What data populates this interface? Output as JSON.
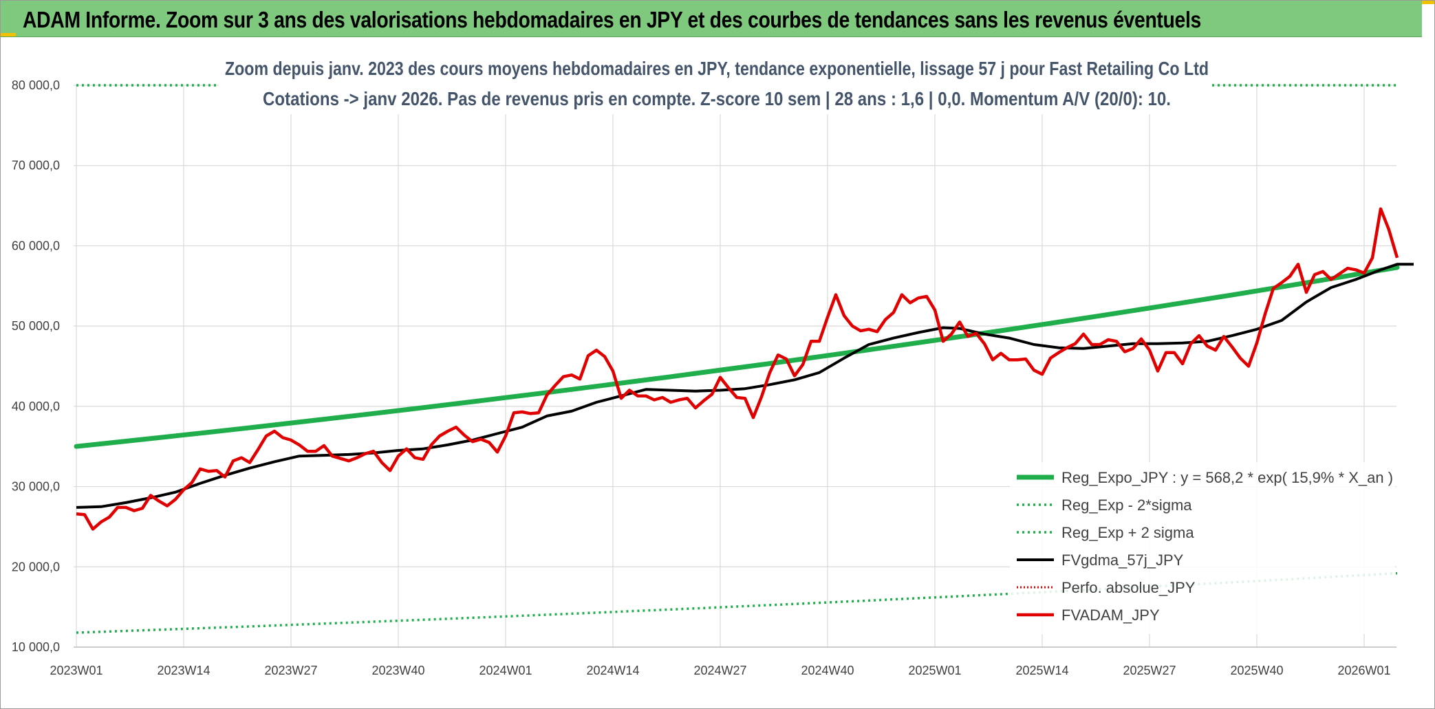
{
  "header": {
    "title": "ADAM Informe. Zoom sur 3 ans des valorisations hebdomadaires en JPY et des courbes de tendances sans les revenus éventuels"
  },
  "colors": {
    "header_bg": "#7fc97f",
    "reg_expo": "#1fae4b",
    "sigma": "#1fae4b",
    "fvgdma": "#000000",
    "perfo": "#e00000",
    "fvadam": "#e00000",
    "subtitle": "#44546a"
  },
  "chart_data": {
    "type": "line",
    "subtitle_lines": [
      "Zoom depuis janv. 2023 des cours moyens hebdomadaires en JPY, tendance exponentielle, lissage 57 j pour Fast Retailing Co Ltd",
      "Cotations -> janv 2026. Pas de revenus pris en compte. Z-score 10 sem | 28 ans : 1,6 | 0,0. Momentum A/V (20/0): 10."
    ],
    "x_tick_labels": [
      "2023W01",
      "2023W14",
      "2023W27",
      "2023W40",
      "2024W01",
      "2024W14",
      "2024W27",
      "2024W40",
      "2025W01",
      "2025W14",
      "2025W27",
      "2025W40",
      "2026W01"
    ],
    "y_tick_labels": [
      "10 000,0",
      "20 000,0",
      "30 000,0",
      "40 000,0",
      "50 000,0",
      "60 000,0",
      "70 000,0",
      "80 000,0"
    ],
    "ylim": [
      10000,
      80000
    ],
    "grid": true,
    "legend_position": "bottom-right",
    "legend": [
      "Reg_Expo_JPY : y = 568,2 * exp( 15,9% *  X_an )",
      "Reg_Exp - 2*sigma",
      "Reg_Exp + 2 sigma",
      "FVgdma_57j_JPY",
      "Perfo. absolue_JPY",
      "FVADAM_JPY"
    ],
    "series": [
      {
        "name": "Reg_Expo_JPY : y = 568,2 * exp( 15,9% *  X_an )",
        "style": "solid-thick",
        "x_week_index": [
          0,
          160
        ],
        "growth_per_year": 0.159,
        "start_value": 35000,
        "end_value": 57300
      },
      {
        "name": "Reg_Exp - 2*sigma",
        "style": "dotted",
        "x_week_index": [
          0,
          160
        ],
        "start_value": 11800,
        "end_value": 19200
      },
      {
        "name": "Reg_Exp + 2 sigma",
        "style": "dotted",
        "x_week_index": [
          0,
          160
        ],
        "start_value": 80000,
        "end_value": 80000,
        "note_clipped": true
      },
      {
        "name": "FVgdma_57j_JPY",
        "style": "solid",
        "points": [
          [
            0,
            27400
          ],
          [
            3,
            27500
          ],
          [
            6,
            28000
          ],
          [
            9,
            28600
          ],
          [
            12,
            29300
          ],
          [
            15,
            30400
          ],
          [
            18,
            31400
          ],
          [
            21,
            32300
          ],
          [
            24,
            33100
          ],
          [
            27,
            33800
          ],
          [
            30,
            33900
          ],
          [
            33,
            34000
          ],
          [
            36,
            34200
          ],
          [
            39,
            34500
          ],
          [
            42,
            34700
          ],
          [
            45,
            35200
          ],
          [
            48,
            35800
          ],
          [
            51,
            36600
          ],
          [
            54,
            37400
          ],
          [
            57,
            38800
          ],
          [
            60,
            39400
          ],
          [
            63,
            40500
          ],
          [
            66,
            41300
          ],
          [
            69,
            42100
          ],
          [
            72,
            42000
          ],
          [
            75,
            41900
          ],
          [
            78,
            42000
          ],
          [
            81,
            42200
          ],
          [
            84,
            42700
          ],
          [
            87,
            43300
          ],
          [
            90,
            44200
          ],
          [
            93,
            46000
          ],
          [
            96,
            47700
          ],
          [
            99,
            48500
          ],
          [
            102,
            49200
          ],
          [
            105,
            49800
          ],
          [
            107,
            49700
          ],
          [
            110,
            49000
          ],
          [
            113,
            48500
          ],
          [
            116,
            47700
          ],
          [
            119,
            47300
          ],
          [
            122,
            47200
          ],
          [
            125,
            47500
          ],
          [
            128,
            47800
          ],
          [
            131,
            47800
          ],
          [
            134,
            47900
          ],
          [
            137,
            48100
          ],
          [
            140,
            48800
          ],
          [
            143,
            49600
          ],
          [
            146,
            50700
          ],
          [
            149,
            53000
          ],
          [
            152,
            54800
          ],
          [
            155,
            55800
          ],
          [
            158,
            57000
          ],
          [
            160,
            57700
          ],
          [
            162,
            57700
          ]
        ]
      },
      {
        "name": "Perfo. absolue_JPY",
        "style": "dotted",
        "points": []
      },
      {
        "name": "FVADAM_JPY",
        "style": "solid-thick",
        "points": [
          [
            0,
            26600
          ],
          [
            1,
            26500
          ],
          [
            2,
            24700
          ],
          [
            3,
            25600
          ],
          [
            4,
            26200
          ],
          [
            5,
            27400
          ],
          [
            6,
            27400
          ],
          [
            7,
            27000
          ],
          [
            8,
            27300
          ],
          [
            9,
            28900
          ],
          [
            10,
            28200
          ],
          [
            11,
            27600
          ],
          [
            12,
            28400
          ],
          [
            13,
            29600
          ],
          [
            14,
            30500
          ],
          [
            15,
            32200
          ],
          [
            16,
            31900
          ],
          [
            17,
            32000
          ],
          [
            18,
            31200
          ],
          [
            19,
            33200
          ],
          [
            20,
            33600
          ],
          [
            21,
            33000
          ],
          [
            22,
            34600
          ],
          [
            23,
            36300
          ],
          [
            24,
            36900
          ],
          [
            25,
            36100
          ],
          [
            26,
            35800
          ],
          [
            27,
            35200
          ],
          [
            28,
            34400
          ],
          [
            29,
            34400
          ],
          [
            30,
            35100
          ],
          [
            31,
            33800
          ],
          [
            32,
            33500
          ],
          [
            33,
            33200
          ],
          [
            34,
            33600
          ],
          [
            35,
            34100
          ],
          [
            36,
            34400
          ],
          [
            37,
            33000
          ],
          [
            38,
            32000
          ],
          [
            39,
            33800
          ],
          [
            40,
            34700
          ],
          [
            41,
            33600
          ],
          [
            42,
            33400
          ],
          [
            43,
            35200
          ],
          [
            44,
            36300
          ],
          [
            45,
            36900
          ],
          [
            46,
            37400
          ],
          [
            47,
            36400
          ],
          [
            48,
            35600
          ],
          [
            49,
            35900
          ],
          [
            50,
            35500
          ],
          [
            51,
            34300
          ],
          [
            52,
            36300
          ],
          [
            53,
            39200
          ],
          [
            54,
            39300
          ],
          [
            55,
            39100
          ],
          [
            56,
            39200
          ],
          [
            57,
            41400
          ],
          [
            58,
            42600
          ],
          [
            59,
            43700
          ],
          [
            60,
            43900
          ],
          [
            61,
            43400
          ],
          [
            62,
            46300
          ],
          [
            63,
            47000
          ],
          [
            64,
            46200
          ],
          [
            65,
            44400
          ],
          [
            66,
            41000
          ],
          [
            67,
            42000
          ],
          [
            68,
            41300
          ],
          [
            69,
            41300
          ],
          [
            70,
            40800
          ],
          [
            71,
            41100
          ],
          [
            72,
            40500
          ],
          [
            73,
            40800
          ],
          [
            74,
            41000
          ],
          [
            75,
            39800
          ],
          [
            76,
            40700
          ],
          [
            77,
            41500
          ],
          [
            78,
            43600
          ],
          [
            79,
            42300
          ],
          [
            80,
            41100
          ],
          [
            81,
            41000
          ],
          [
            82,
            38600
          ],
          [
            83,
            41200
          ],
          [
            84,
            44200
          ],
          [
            85,
            46400
          ],
          [
            86,
            45900
          ],
          [
            87,
            43800
          ],
          [
            88,
            45200
          ],
          [
            89,
            48100
          ],
          [
            90,
            48100
          ],
          [
            91,
            51100
          ],
          [
            92,
            53900
          ],
          [
            93,
            51300
          ],
          [
            94,
            50000
          ],
          [
            95,
            49400
          ],
          [
            96,
            49600
          ],
          [
            97,
            49300
          ],
          [
            98,
            50800
          ],
          [
            99,
            51700
          ],
          [
            100,
            53900
          ],
          [
            101,
            52900
          ],
          [
            102,
            53500
          ],
          [
            103,
            53700
          ],
          [
            104,
            52000
          ],
          [
            105,
            48100
          ],
          [
            106,
            49000
          ],
          [
            107,
            50500
          ],
          [
            108,
            48700
          ],
          [
            109,
            49100
          ],
          [
            110,
            47800
          ],
          [
            111,
            45800
          ],
          [
            112,
            46600
          ],
          [
            113,
            45800
          ],
          [
            114,
            45800
          ],
          [
            115,
            45900
          ],
          [
            116,
            44500
          ],
          [
            117,
            44000
          ],
          [
            118,
            46000
          ],
          [
            119,
            46700
          ],
          [
            120,
            47300
          ],
          [
            121,
            47800
          ],
          [
            122,
            49000
          ],
          [
            123,
            47700
          ],
          [
            124,
            47700
          ],
          [
            125,
            48300
          ],
          [
            126,
            48100
          ],
          [
            127,
            46800
          ],
          [
            128,
            47200
          ],
          [
            129,
            48400
          ],
          [
            130,
            47000
          ],
          [
            131,
            44400
          ],
          [
            132,
            46700
          ],
          [
            133,
            46700
          ],
          [
            134,
            45300
          ],
          [
            135,
            47800
          ],
          [
            136,
            48800
          ],
          [
            137,
            47500
          ],
          [
            138,
            47000
          ],
          [
            139,
            48700
          ],
          [
            140,
            47400
          ],
          [
            141,
            46000
          ],
          [
            142,
            45000
          ],
          [
            143,
            47900
          ],
          [
            144,
            51500
          ],
          [
            145,
            54700
          ],
          [
            146,
            55400
          ],
          [
            147,
            56200
          ],
          [
            148,
            57700
          ],
          [
            149,
            54200
          ],
          [
            150,
            56400
          ],
          [
            151,
            56800
          ],
          [
            152,
            55800
          ],
          [
            153,
            56500
          ],
          [
            154,
            57200
          ],
          [
            155,
            57000
          ],
          [
            156,
            56600
          ],
          [
            157,
            58500
          ],
          [
            158,
            64600
          ],
          [
            159,
            62000
          ],
          [
            160,
            58500
          ]
        ]
      }
    ]
  }
}
